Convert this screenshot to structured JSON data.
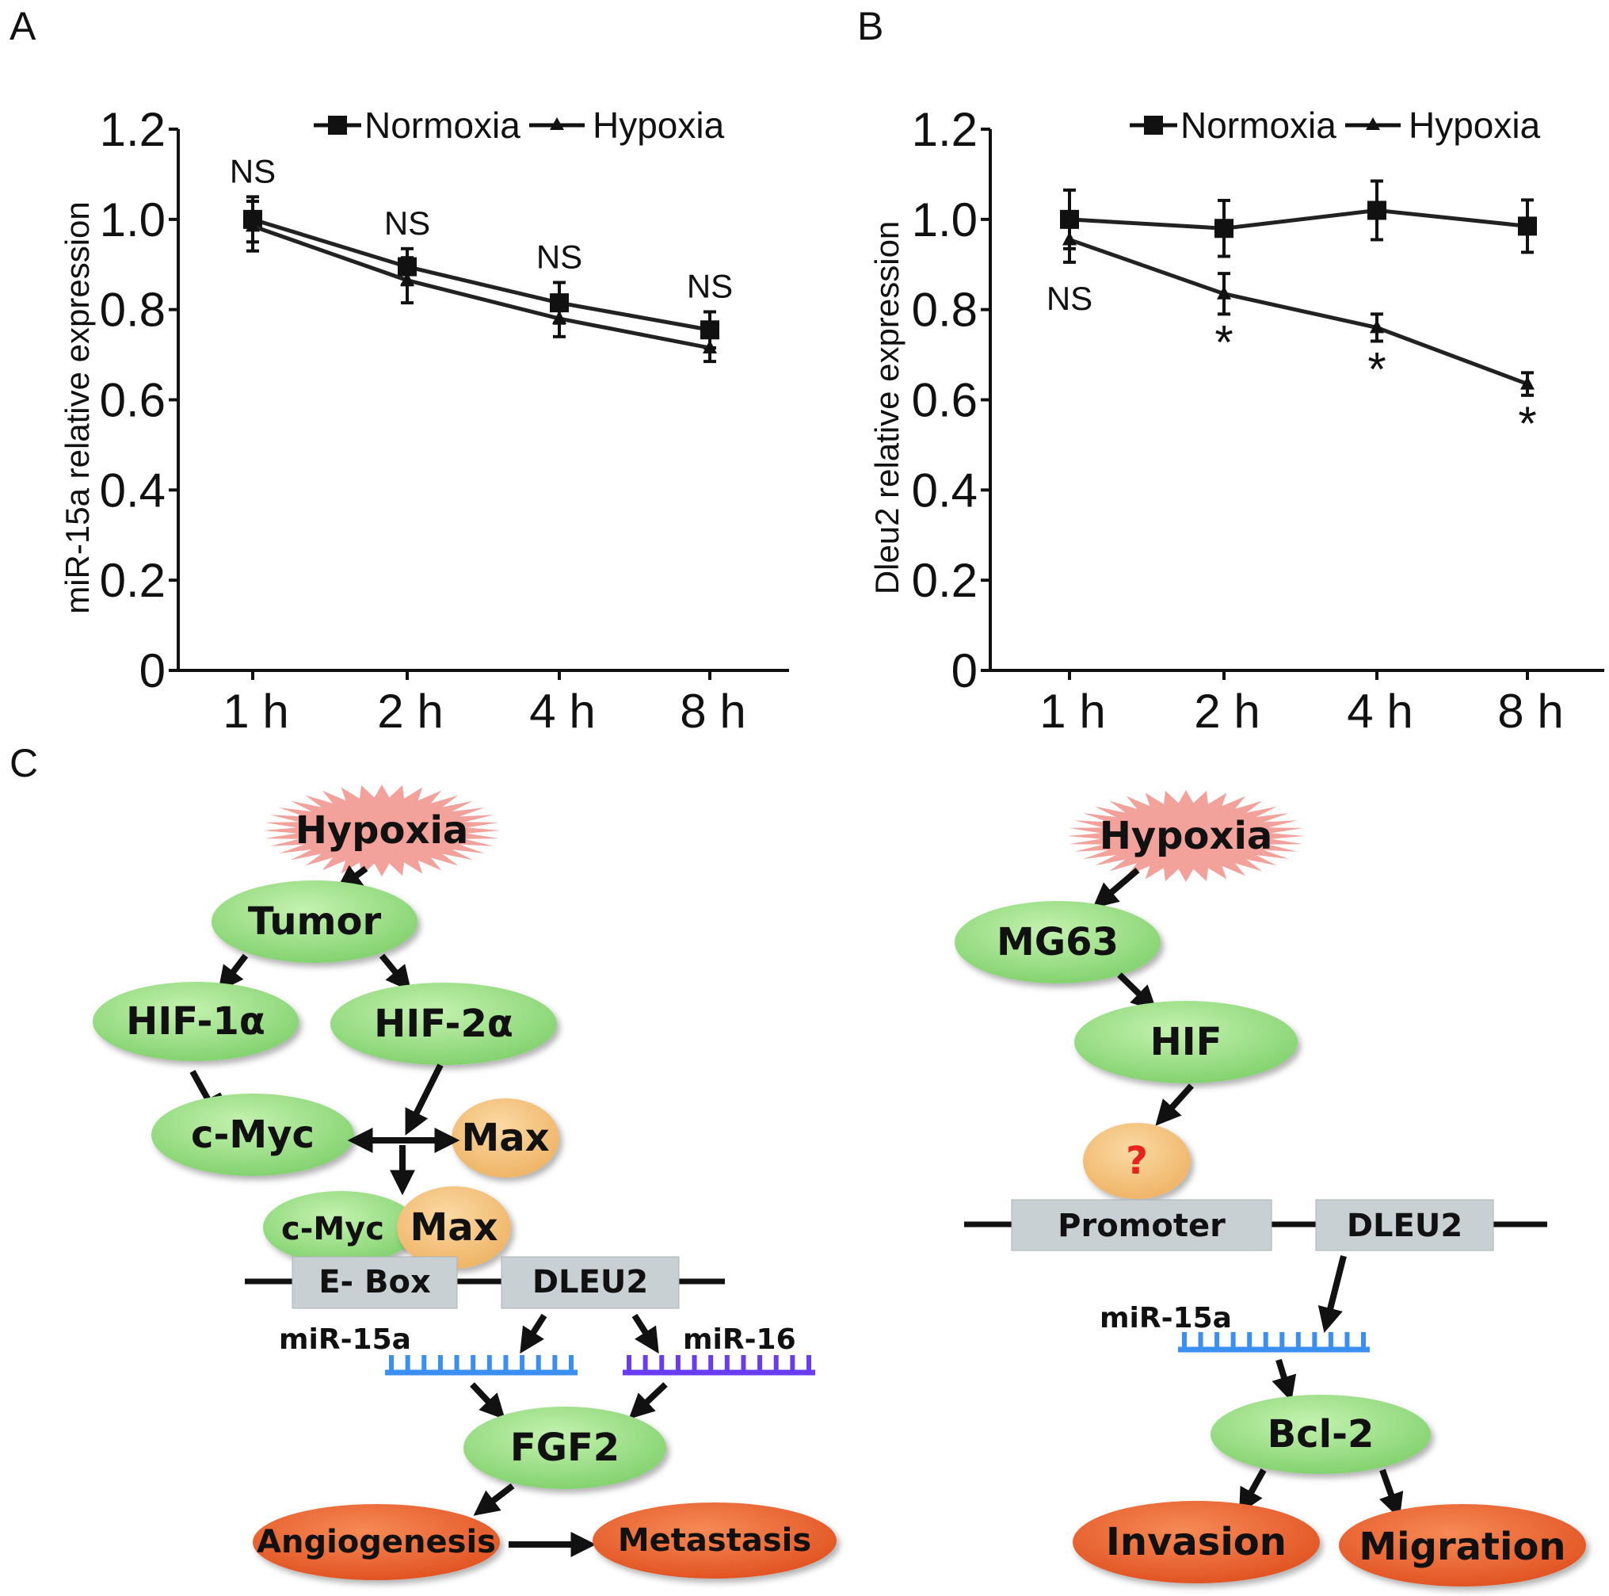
{
  "panels": {
    "a": "A",
    "b": "B",
    "c": "C"
  },
  "chart_data": [
    {
      "type": "line",
      "panel": "A",
      "categories": [
        "1 h",
        "2 h",
        "4 h",
        "8 h"
      ],
      "ylabel": "miR-15a relative expression",
      "xlabel": "",
      "ylim": [
        0,
        1.2
      ],
      "yticks": [
        "0",
        "0.2",
        "0.4",
        "0.6",
        "0.8",
        "1.0",
        "1.2"
      ],
      "grid": false,
      "legend": "top",
      "series": [
        {
          "name": "Normoxia",
          "marker": "square",
          "values": [
            1.0,
            0.895,
            0.815,
            0.755
          ],
          "errors": [
            0.05,
            0.04,
            0.045,
            0.04
          ]
        },
        {
          "name": "Hypoxia",
          "marker": "triangle",
          "values": [
            0.985,
            0.865,
            0.78,
            0.715
          ],
          "errors": [
            0.055,
            0.05,
            0.04,
            0.03
          ]
        }
      ],
      "annotations": [
        {
          "category": "1 h",
          "text": "NS",
          "position": "above"
        },
        {
          "category": "2 h",
          "text": "NS",
          "position": "above"
        },
        {
          "category": "4 h",
          "text": "NS",
          "position": "above"
        },
        {
          "category": "8 h",
          "text": "NS",
          "position": "above"
        }
      ]
    },
    {
      "type": "line",
      "panel": "B",
      "categories": [
        "1 h",
        "2 h",
        "4 h",
        "8 h"
      ],
      "ylabel": "Dleu2 relative expression",
      "xlabel": "",
      "ylim": [
        0,
        1.2
      ],
      "yticks": [
        "0",
        "0.2",
        "0.4",
        "0.6",
        "0.8",
        "1.0",
        "1.2"
      ],
      "grid": false,
      "legend": "top",
      "series": [
        {
          "name": "Normoxia",
          "marker": "square",
          "values": [
            1.0,
            0.98,
            1.02,
            0.985
          ],
          "errors": [
            0.065,
            0.062,
            0.065,
            0.058
          ]
        },
        {
          "name": "Hypoxia",
          "marker": "triangle",
          "values": [
            0.955,
            0.835,
            0.76,
            0.635
          ],
          "errors": [
            0.05,
            0.045,
            0.03,
            0.025
          ]
        }
      ],
      "annotations": [
        {
          "category": "1 h",
          "text": "NS",
          "position": "below"
        },
        {
          "category": "2 h",
          "text": "*",
          "position": "below"
        },
        {
          "category": "4 h",
          "text": "*",
          "position": "below"
        },
        {
          "category": "8 h",
          "text": "*",
          "position": "below"
        }
      ]
    }
  ],
  "diagram_left": {
    "hypoxia": "Hypoxia",
    "tumor": "Tumor",
    "hif1a": "HIF-1α",
    "hif2a": "HIF-2α",
    "cmyc": "c-Myc",
    "max": "Max",
    "complex_cmyc": "c-Myc",
    "complex_max": "Max",
    "ebox": "E- Box",
    "dleu2": "DLEU2",
    "mir15a": "miR-15a",
    "mir16": "miR-16",
    "fgf2": "FGF2",
    "angiogenesis": "Angiogenesis",
    "metastasis": "Metastasis"
  },
  "diagram_right": {
    "hypoxia": "Hypoxia",
    "mg63": "MG63",
    "hif": "HIF",
    "unknown": "?",
    "promoter": "Promoter",
    "dleu2": "DLEU2",
    "mir15a": "miR-15a",
    "bcl2": "Bcl-2",
    "invasion": "Invasion",
    "migration": "Migration"
  },
  "colors": {
    "node_green": "#8fdc78",
    "node_orange": "#f5c27c",
    "outcome": "#e8592a",
    "hypoxia_star": "#f2a19b",
    "gene_box": "#c9d0d4",
    "mir15a": "#3a8ff0",
    "mir16": "#6a3cf0",
    "question": "#e8221c",
    "line": "#111111"
  }
}
